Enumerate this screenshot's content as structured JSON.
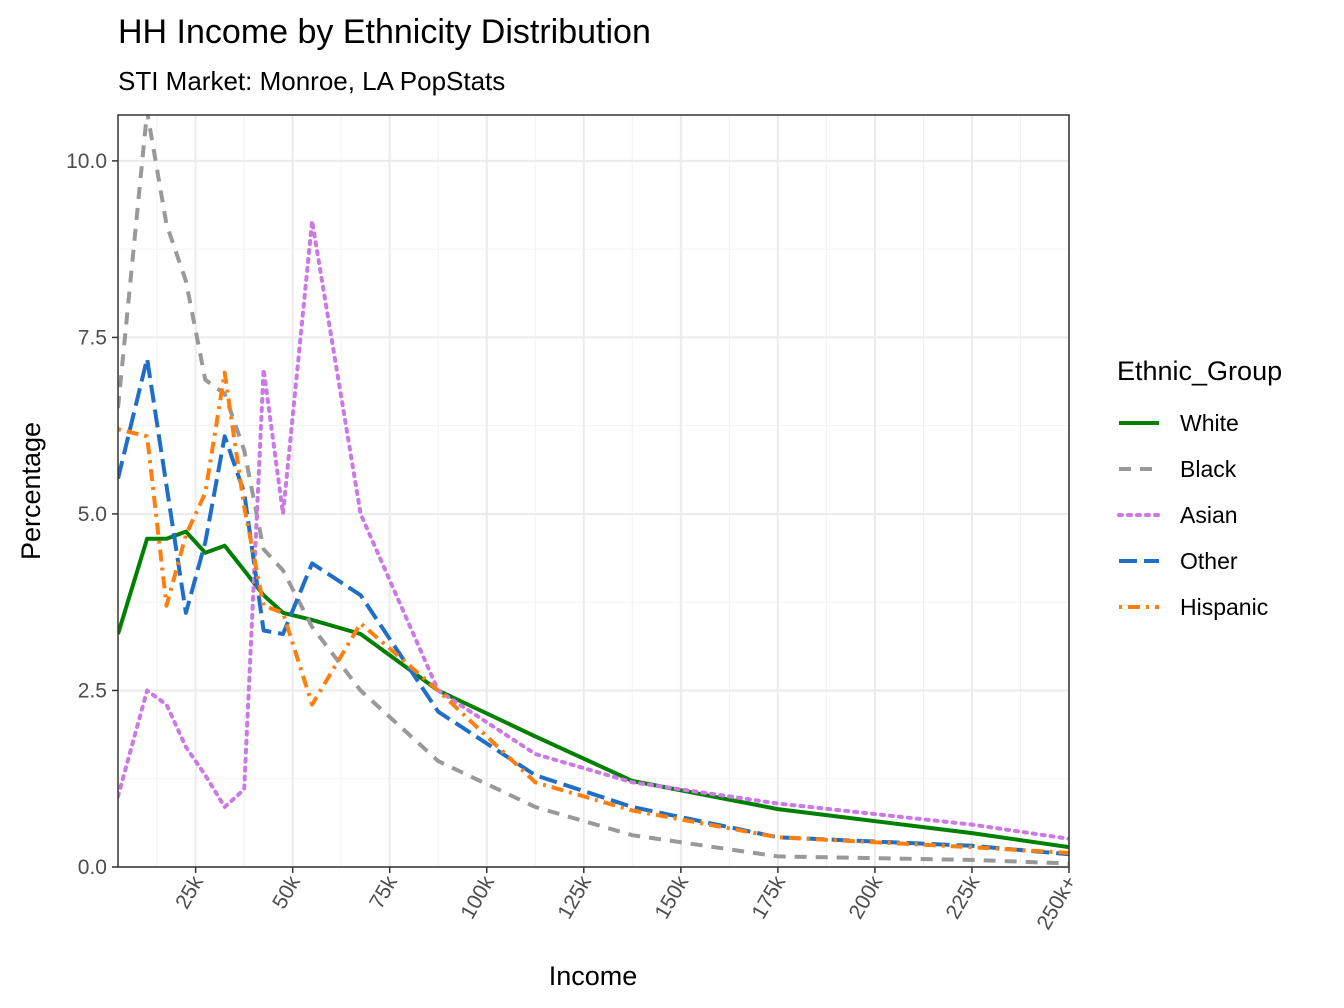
{
  "chart_data": {
    "type": "line",
    "title": "HH Income by Ethnicity Distribution",
    "subtitle": "STI Market: Monroe, LA PopStats",
    "xlabel": "Income",
    "ylabel": "Percentage",
    "x_ticks": [
      "25k",
      "50k",
      "75k",
      "100k",
      "125k",
      "150k",
      "175k",
      "200k",
      "225k",
      "250k+"
    ],
    "x_tick_values": [
      25,
      50,
      75,
      100,
      125,
      150,
      175,
      200,
      225,
      250
    ],
    "xlim": [
      5,
      250
    ],
    "y_ticks": [
      "0.0",
      "2.5",
      "5.0",
      "7.5",
      "10.0"
    ],
    "y_tick_values": [
      0,
      2.5,
      5,
      7.5,
      10
    ],
    "ylim": [
      0,
      10.65
    ],
    "grid": true,
    "legend": {
      "title": "Ethnic_Group",
      "position": "right"
    },
    "x": [
      5,
      12.5,
      17.5,
      22.5,
      27.5,
      32.5,
      37.5,
      42.5,
      47.5,
      55,
      67.5,
      87.5,
      112.5,
      137.5,
      175,
      225,
      250
    ],
    "series": [
      {
        "name": "White",
        "color": "#008000",
        "dash": "solid",
        "values": [
          3.3,
          4.65,
          4.65,
          4.75,
          4.45,
          4.55,
          4.2,
          3.85,
          3.6,
          3.5,
          3.3,
          2.5,
          1.85,
          1.22,
          0.82,
          0.48,
          0.28
        ]
      },
      {
        "name": "Black",
        "color": "#999999",
        "dash": "dashed",
        "values": [
          6.5,
          10.7,
          9.1,
          8.3,
          6.9,
          6.7,
          5.9,
          4.5,
          4.2,
          3.4,
          2.5,
          1.5,
          0.85,
          0.45,
          0.15,
          0.1,
          0.05
        ]
      },
      {
        "name": "Asian",
        "color": "#cc79e8",
        "dash": "dotted",
        "values": [
          1.0,
          2.5,
          2.3,
          1.7,
          1.3,
          0.85,
          1.1,
          7.05,
          5.0,
          9.15,
          5.0,
          2.5,
          1.6,
          1.2,
          0.9,
          0.6,
          0.4
        ]
      },
      {
        "name": "Other",
        "color": "#1f6fc8",
        "dash": "longdash",
        "values": [
          5.5,
          7.2,
          5.4,
          3.6,
          4.6,
          6.1,
          5.3,
          3.35,
          3.3,
          4.3,
          3.85,
          2.2,
          1.3,
          0.85,
          0.42,
          0.3,
          0.18
        ]
      },
      {
        "name": "Hispanic",
        "color": "#ff7f0e",
        "dash": "dotdash",
        "values": [
          6.2,
          6.1,
          3.7,
          4.7,
          5.3,
          7.0,
          5.1,
          3.7,
          3.6,
          2.3,
          3.45,
          2.5,
          1.2,
          0.8,
          0.42,
          0.28,
          0.2
        ]
      }
    ]
  }
}
